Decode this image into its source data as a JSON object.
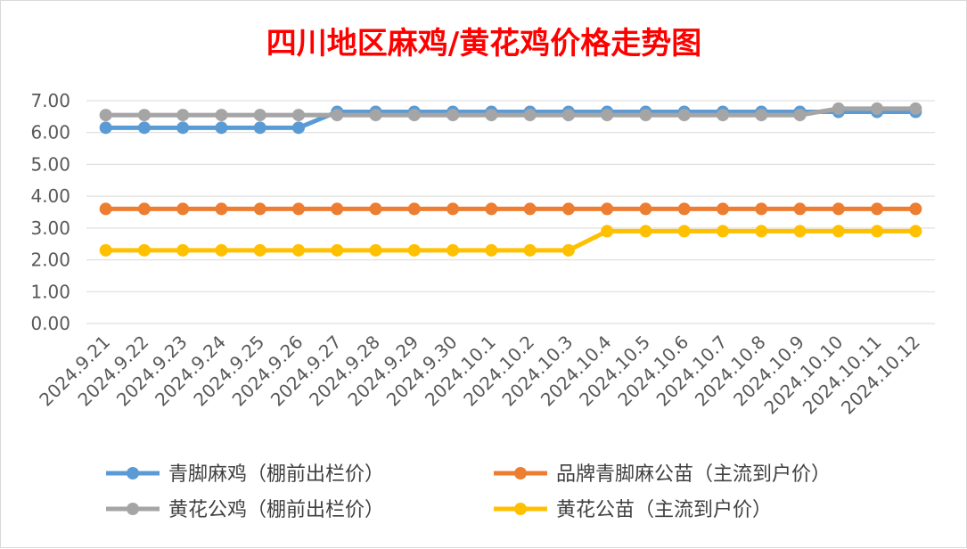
{
  "chart_data": {
    "type": "line",
    "title": "四川地区麻鸡/黄花鸡价格走势图",
    "title_color": "#ff0000",
    "categories": [
      "2024.9.21",
      "2024.9.22",
      "2024.9.23",
      "2024.9.24",
      "2024.9.25",
      "2024.9.26",
      "2024.9.27",
      "2024.9.28",
      "2024.9.29",
      "2024.9.30",
      "2024.10.1",
      "2024.10.2",
      "2024.10.3",
      "2024.10.4",
      "2024.10.5",
      "2024.10.6",
      "2024.10.7",
      "2024.10.8",
      "2024.10.9",
      "2024.10.10",
      "2024.10.11",
      "2024.10.12"
    ],
    "y_ticks": [
      "0.00",
      "1.00",
      "2.00",
      "3.00",
      "4.00",
      "5.00",
      "6.00",
      "7.00"
    ],
    "ylim": [
      0,
      7
    ],
    "grid": true,
    "legend_position": "bottom",
    "series": [
      {
        "name": "青脚麻鸡（棚前出栏价）",
        "color": "#5b9bd5",
        "values": [
          6.15,
          6.15,
          6.15,
          6.15,
          6.15,
          6.15,
          6.65,
          6.65,
          6.65,
          6.65,
          6.65,
          6.65,
          6.65,
          6.65,
          6.65,
          6.65,
          6.65,
          6.65,
          6.65,
          6.65,
          6.65,
          6.65
        ]
      },
      {
        "name": "品牌青脚麻公苗（主流到户价）",
        "color": "#ed7d31",
        "values": [
          3.6,
          3.6,
          3.6,
          3.6,
          3.6,
          3.6,
          3.6,
          3.6,
          3.6,
          3.6,
          3.6,
          3.6,
          3.6,
          3.6,
          3.6,
          3.6,
          3.6,
          3.6,
          3.6,
          3.6,
          3.6,
          3.6
        ]
      },
      {
        "name": "黄花公鸡（棚前出栏价）",
        "color": "#a5a5a5",
        "values": [
          6.55,
          6.55,
          6.55,
          6.55,
          6.55,
          6.55,
          6.55,
          6.55,
          6.55,
          6.55,
          6.55,
          6.55,
          6.55,
          6.55,
          6.55,
          6.55,
          6.55,
          6.55,
          6.55,
          6.75,
          6.75,
          6.75
        ]
      },
      {
        "name": "黄花公苗（主流到户价）",
        "color": "#ffc000",
        "values": [
          2.3,
          2.3,
          2.3,
          2.3,
          2.3,
          2.3,
          2.3,
          2.3,
          2.3,
          2.3,
          2.3,
          2.3,
          2.3,
          2.9,
          2.9,
          2.9,
          2.9,
          2.9,
          2.9,
          2.9,
          2.9,
          2.9
        ]
      }
    ]
  }
}
